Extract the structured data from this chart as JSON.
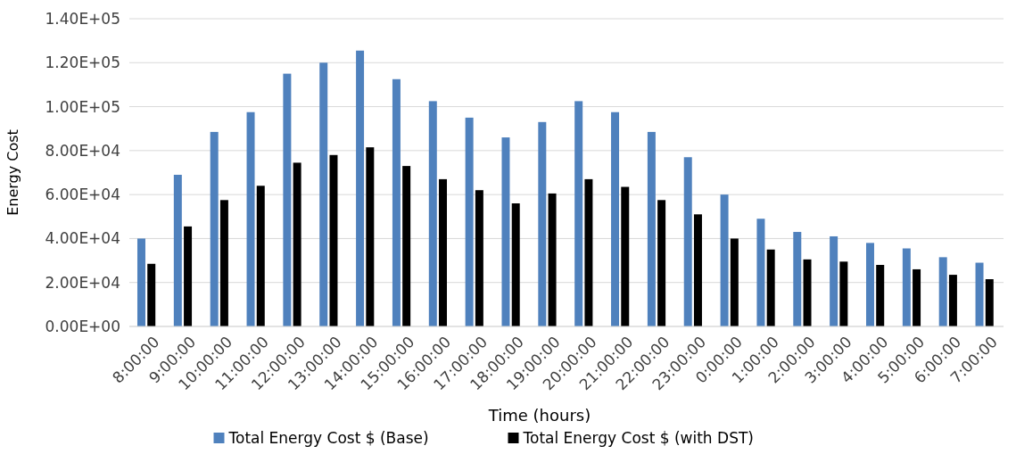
{
  "chart_data": {
    "type": "bar",
    "xlabel": "Time (hours)",
    "ylabel": "Energy Cost",
    "categories": [
      "8:00:00",
      "9:00:00",
      "10:00:00",
      "11:00:00",
      "12:00:00",
      "13:00:00",
      "14:00:00",
      "15:00:00",
      "16:00:00",
      "17:00:00",
      "18:00:00",
      "19:00:00",
      "20:00:00",
      "21:00:00",
      "22:00:00",
      "23:00:00",
      "0:00:00",
      "1:00:00",
      "2:00:00",
      "3:00:00",
      "4:00:00",
      "5:00:00",
      "6:00:00",
      "7:00:00"
    ],
    "series": [
      {
        "name": "Total Energy Cost $ (Base)",
        "color": "#4f81bd",
        "values": [
          40000,
          69000,
          88500,
          97500,
          115000,
          120000,
          125500,
          112500,
          102500,
          95000,
          86000,
          93000,
          102500,
          97500,
          88500,
          77000,
          60000,
          49000,
          43000,
          41000,
          38000,
          35500,
          31500,
          29000
        ]
      },
      {
        "name": "Total Energy Cost $ (with DST)",
        "color": "#000000",
        "values": [
          28500,
          45500,
          57500,
          64000,
          74500,
          78000,
          81500,
          73000,
          67000,
          62000,
          56000,
          60500,
          67000,
          63500,
          57500,
          51000,
          40000,
          35000,
          30500,
          29500,
          28000,
          26000,
          23500,
          21500
        ]
      }
    ],
    "ylim": [
      0,
      140000
    ],
    "yticks": [
      {
        "value": 0,
        "label": "0.00E+00"
      },
      {
        "value": 20000,
        "label": "2.00E+04"
      },
      {
        "value": 40000,
        "label": "4.00E+04"
      },
      {
        "value": 60000,
        "label": "6.00E+04"
      },
      {
        "value": 80000,
        "label": "8.00E+04"
      },
      {
        "value": 100000,
        "label": "1.00E+05"
      },
      {
        "value": 120000,
        "label": "1.20E+05"
      },
      {
        "value": 140000,
        "label": "1.40E+05"
      }
    ],
    "grid": "y",
    "legend": "bottom"
  }
}
